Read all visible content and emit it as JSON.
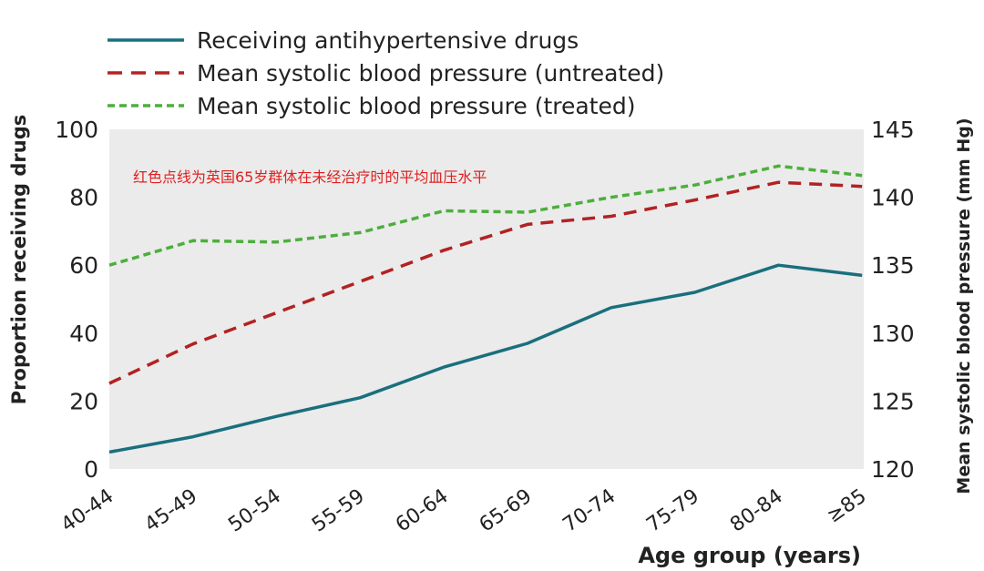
{
  "chart_data": {
    "type": "line",
    "categories": [
      "40-44",
      "45-49",
      "50-54",
      "55-59",
      "60-64",
      "65-69",
      "70-74",
      "75-79",
      "80-84",
      "≥85"
    ],
    "series": [
      {
        "name": "Receiving antihypertensive drugs",
        "axis": "left",
        "color": "#1a6f7d",
        "style": "solid",
        "values": [
          5,
          9.5,
          15.5,
          21,
          30,
          37,
          47.5,
          52,
          60,
          57
        ]
      },
      {
        "name": "Mean systolic blood pressure (untreated)",
        "axis": "right",
        "color": "#b22222",
        "style": "dashed",
        "values": [
          126.3,
          129.2,
          131.5,
          133.8,
          136.1,
          138,
          138.6,
          139.8,
          141.1,
          140.8
        ]
      },
      {
        "name": "Mean systolic blood pressure (treated)",
        "axis": "right",
        "color": "#4caf3c",
        "style": "dotted",
        "values": [
          135,
          136.8,
          136.7,
          137.4,
          139,
          138.9,
          140,
          140.9,
          142.3,
          141.6
        ]
      }
    ],
    "xlabel": "Age group (years)",
    "ylabel_left": "Proportion receiving drugs",
    "ylabel_right": "Mean systolic blood pressure (mm Hg)",
    "ylim_left": [
      0,
      100
    ],
    "ylim_right": [
      120,
      145
    ],
    "yticks_left": [
      "0",
      "20",
      "40",
      "60",
      "80",
      "100"
    ],
    "yticks_right": [
      "120",
      "125",
      "130",
      "135",
      "140",
      "145"
    ],
    "grid": false,
    "legend_position": "top-left",
    "plot_background": "#ebebeb",
    "annotation": "红色点线为英国65岁群体在未经治疗时的平均血压水平",
    "annotation_color": "#e02020"
  }
}
